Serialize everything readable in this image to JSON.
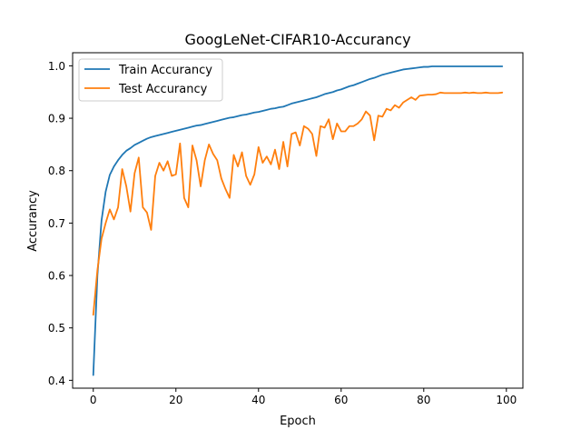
{
  "chart_data": {
    "type": "line",
    "title": "GoogLeNet-CIFAR10-Accurancy",
    "xlabel": "Epoch",
    "ylabel": "Accurancy",
    "xlim": [
      -5,
      104
    ],
    "ylim": [
      0.385,
      1.025
    ],
    "xticks": [
      0,
      20,
      40,
      60,
      80,
      100
    ],
    "yticks": [
      0.4,
      0.5,
      0.6,
      0.7,
      0.8,
      0.9,
      1.0
    ],
    "xtick_labels": [
      "0",
      "20",
      "40",
      "60",
      "80",
      "100"
    ],
    "ytick_labels": [
      "0.4",
      "0.5",
      "0.6",
      "0.7",
      "0.8",
      "0.9",
      "1.0"
    ],
    "grid": false,
    "legend_position": "top-left",
    "x": [
      0,
      1,
      2,
      3,
      4,
      5,
      6,
      7,
      8,
      9,
      10,
      11,
      12,
      13,
      14,
      15,
      16,
      17,
      18,
      19,
      20,
      21,
      22,
      23,
      24,
      25,
      26,
      27,
      28,
      29,
      30,
      31,
      32,
      33,
      34,
      35,
      36,
      37,
      38,
      39,
      40,
      41,
      42,
      43,
      44,
      45,
      46,
      47,
      48,
      49,
      50,
      51,
      52,
      53,
      54,
      55,
      56,
      57,
      58,
      59,
      60,
      61,
      62,
      63,
      64,
      65,
      66,
      67,
      68,
      69,
      70,
      71,
      72,
      73,
      74,
      75,
      76,
      77,
      78,
      79,
      80,
      81,
      82,
      83,
      84,
      85,
      86,
      87,
      88,
      89,
      90,
      91,
      92,
      93,
      94,
      95,
      96,
      97,
      98,
      99
    ],
    "series": [
      {
        "name": "Train Accurancy",
        "color": "#1f77b4",
        "values": [
          0.41,
          0.6,
          0.705,
          0.76,
          0.792,
          0.808,
          0.82,
          0.83,
          0.838,
          0.843,
          0.849,
          0.853,
          0.857,
          0.861,
          0.864,
          0.866,
          0.868,
          0.87,
          0.872,
          0.874,
          0.876,
          0.878,
          0.88,
          0.882,
          0.884,
          0.886,
          0.887,
          0.889,
          0.891,
          0.893,
          0.895,
          0.897,
          0.899,
          0.901,
          0.902,
          0.904,
          0.906,
          0.907,
          0.909,
          0.911,
          0.912,
          0.914,
          0.916,
          0.918,
          0.919,
          0.921,
          0.922,
          0.925,
          0.928,
          0.93,
          0.932,
          0.934,
          0.936,
          0.938,
          0.94,
          0.943,
          0.946,
          0.948,
          0.95,
          0.953,
          0.955,
          0.958,
          0.961,
          0.963,
          0.966,
          0.969,
          0.972,
          0.975,
          0.977,
          0.98,
          0.983,
          0.985,
          0.987,
          0.989,
          0.991,
          0.993,
          0.994,
          0.995,
          0.996,
          0.997,
          0.998,
          0.998,
          0.999,
          0.999,
          0.999,
          0.999,
          0.999,
          0.999,
          0.999,
          0.999,
          0.999,
          0.999,
          0.999,
          0.999,
          0.999,
          0.999,
          0.999,
          0.999,
          0.999,
          0.999
        ]
      },
      {
        "name": "Test Accurancy",
        "color": "#ff7f0e",
        "values": [
          0.525,
          0.61,
          0.67,
          0.7,
          0.726,
          0.707,
          0.73,
          0.803,
          0.77,
          0.722,
          0.795,
          0.825,
          0.73,
          0.72,
          0.687,
          0.79,
          0.815,
          0.8,
          0.818,
          0.79,
          0.793,
          0.852,
          0.748,
          0.73,
          0.848,
          0.82,
          0.77,
          0.82,
          0.85,
          0.832,
          0.82,
          0.785,
          0.765,
          0.748,
          0.83,
          0.808,
          0.835,
          0.79,
          0.773,
          0.793,
          0.845,
          0.815,
          0.827,
          0.812,
          0.84,
          0.803,
          0.855,
          0.808,
          0.87,
          0.873,
          0.848,
          0.885,
          0.88,
          0.87,
          0.828,
          0.885,
          0.882,
          0.898,
          0.86,
          0.89,
          0.875,
          0.875,
          0.885,
          0.885,
          0.89,
          0.898,
          0.913,
          0.905,
          0.858,
          0.905,
          0.903,
          0.918,
          0.915,
          0.925,
          0.92,
          0.93,
          0.935,
          0.94,
          0.935,
          0.943,
          0.944,
          0.945,
          0.945,
          0.946,
          0.949,
          0.948,
          0.948,
          0.948,
          0.948,
          0.948,
          0.949,
          0.948,
          0.949,
          0.948,
          0.948,
          0.949,
          0.948,
          0.948,
          0.948,
          0.949
        ]
      }
    ]
  }
}
